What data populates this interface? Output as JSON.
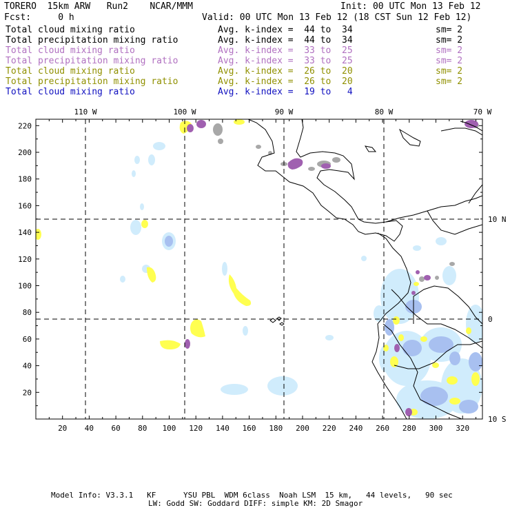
{
  "header": {
    "left_line1": "TORERO  15km ARW   Run2    NCAR/MMM",
    "right_line1": "Init: 00 UTC Mon 13 Feb 12",
    "left_line2": "Fcst:     0 h",
    "right_line2": "Valid: 00 UTC Mon 13 Feb 12 (18 CST Sun 12 Feb 12)"
  },
  "legend": [
    {
      "field": "Total cloud mixing ratio",
      "avg": "Avg. k-index =  44 to  34",
      "sm": "sm= 2",
      "color": "#000000"
    },
    {
      "field": "Total precipitation mixing ratio",
      "avg": "Avg. k-index =  44 to  34",
      "sm": "sm= 2",
      "color": "#000000"
    },
    {
      "field": "Total cloud mixing ratio",
      "avg": "Avg. k-index =  33 to  25",
      "sm": "sm= 2",
      "color": "#b070c0"
    },
    {
      "field": "Total precipitation mixing ratio",
      "avg": "Avg. k-index =  33 to  25",
      "sm": "sm= 2",
      "color": "#b070c0"
    },
    {
      "field": "Total cloud mixing ratio",
      "avg": "Avg. k-index =  26 to  20",
      "sm": "sm= 2",
      "color": "#909000"
    },
    {
      "field": "Total precipitation mixing ratio",
      "avg": "Avg. k-index =  26 to  20",
      "sm": "sm= 2",
      "color": "#909000"
    },
    {
      "field": "Total cloud mixing ratio",
      "avg": "Avg. k-index =  19 to   4",
      "sm": "",
      "color": "#1010c0"
    }
  ],
  "map": {
    "lon_labels": [
      "110 W",
      "100 W",
      "90 W",
      "80 W",
      "70 W"
    ],
    "lat_labels": [
      "10 N",
      "0",
      "10 S"
    ],
    "y_ticks": [
      "20",
      "40",
      "60",
      "80",
      "100",
      "120",
      "140",
      "160",
      "180",
      "200",
      "220"
    ],
    "x_ticks": [
      "20",
      "40",
      "60",
      "80",
      "100",
      "120",
      "140",
      "160",
      "180",
      "200",
      "220",
      "240",
      "260",
      "280",
      "300",
      "320"
    ],
    "colors": {
      "gray": "#a8a8a8",
      "purple": "#a060b0",
      "yellow": "#ffff50",
      "lightblue": "#d0ecfc",
      "blue": "#a8c0f0"
    }
  },
  "footer": {
    "line1": "Model Info: V3.3.1   KF      YSU PBL  WDM 6class  Noah LSM  15 km,   44 levels,   90 sec",
    "line2": "LW: Godd SW: Goddard DIFF: simple KM: 2D Smagor"
  }
}
